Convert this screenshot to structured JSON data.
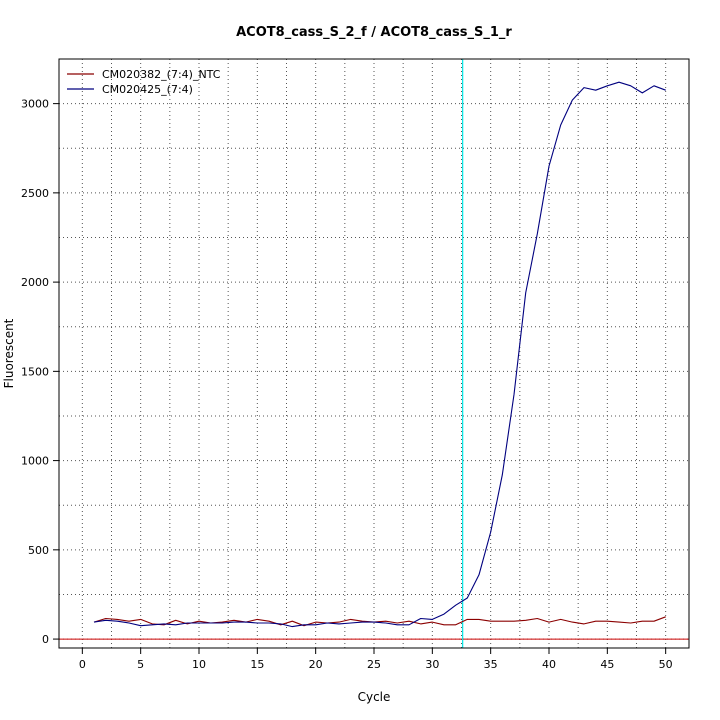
{
  "chart_data": {
    "type": "line",
    "title": "ACOT8_cass_S_2_f / ACOT8_cass_S_1_r",
    "xlabel": "Cycle",
    "ylabel": "Fluorescent",
    "xlim": [
      -2,
      52
    ],
    "ylim": [
      -50,
      3250
    ],
    "x_ticks": [
      0,
      5,
      10,
      15,
      20,
      25,
      30,
      35,
      40,
      45,
      50
    ],
    "y_ticks": [
      0,
      500,
      1000,
      1500,
      2000,
      2500,
      3000
    ],
    "grid": true,
    "legend_position": "top-left",
    "threshold_cycle": 32.6,
    "baseline_y": 0,
    "colors": {
      "ntc": "#8b0000",
      "sample": "#00007f",
      "threshold": "#00e5e5",
      "baseline": "#cc0000",
      "grid": "#555555"
    },
    "series": [
      {
        "name": "CM020382_(7:4)_NTC",
        "color": "#8b0000",
        "x": [
          1,
          2,
          3,
          4,
          5,
          6,
          7,
          8,
          9,
          10,
          11,
          12,
          13,
          14,
          15,
          16,
          17,
          18,
          19,
          20,
          21,
          22,
          23,
          24,
          25,
          26,
          27,
          28,
          29,
          30,
          31,
          32,
          33,
          34,
          35,
          36,
          37,
          38,
          39,
          40,
          41,
          42,
          43,
          44,
          45,
          46,
          47,
          48,
          49,
          50
        ],
        "values": [
          95,
          115,
          110,
          100,
          110,
          85,
          80,
          105,
          85,
          100,
          90,
          95,
          105,
          95,
          110,
          100,
          80,
          100,
          75,
          95,
          90,
          95,
          110,
          100,
          95,
          100,
          90,
          100,
          85,
          95,
          80,
          80,
          110,
          110,
          100,
          100,
          100,
          105,
          115,
          95,
          110,
          95,
          85,
          100,
          100,
          95,
          90,
          100,
          100,
          125
        ]
      },
      {
        "name": "CM020425_(7:4)",
        "color": "#00007f",
        "x": [
          1,
          2,
          3,
          4,
          5,
          6,
          7,
          8,
          9,
          10,
          11,
          12,
          13,
          14,
          15,
          16,
          17,
          18,
          19,
          20,
          21,
          22,
          23,
          24,
          25,
          26,
          27,
          28,
          29,
          30,
          31,
          32,
          33,
          34,
          35,
          36,
          37,
          38,
          39,
          40,
          41,
          42,
          43,
          44,
          45,
          46,
          47,
          48,
          49,
          50
        ],
        "values": [
          95,
          105,
          100,
          90,
          75,
          80,
          85,
          80,
          90,
          90,
          90,
          90,
          95,
          95,
          90,
          90,
          85,
          70,
          80,
          80,
          90,
          85,
          90,
          95,
          95,
          90,
          80,
          80,
          115,
          110,
          140,
          190,
          230,
          360,
          600,
          920,
          1370,
          1940,
          2270,
          2650,
          2880,
          3020,
          3090,
          3075,
          3100,
          3120,
          3100,
          3060,
          3100,
          3075
        ]
      }
    ]
  }
}
